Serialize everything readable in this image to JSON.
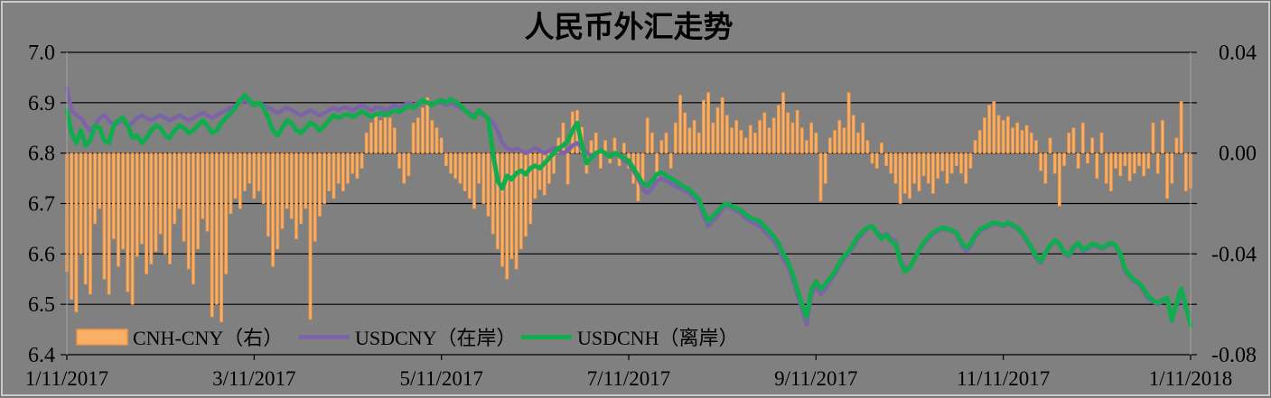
{
  "chart_data": {
    "type": "combo",
    "title": "人民币外汇走势",
    "background": "#808080",
    "grid": "horizontal",
    "legend_position": "bottom-left",
    "x": {
      "ticklabels": [
        "1/11/2017",
        "3/11/2017",
        "5/11/2017",
        "7/11/2017",
        "9/11/2017",
        "11/11/2017",
        "1/11/2018"
      ],
      "n_points": 241
    },
    "y_left": {
      "min": 6.4,
      "max": 7.0,
      "tick_step": 0.1,
      "ticklabels": [
        "7.0",
        "6.9",
        "6.8",
        "6.7",
        "6.6",
        "6.5",
        "6.4"
      ]
    },
    "y_right": {
      "min": -0.08,
      "max": 0.04,
      "tick_step": 0.04,
      "ticklabels": [
        "0.04",
        "0.00",
        "-0.04",
        "-0.08"
      ]
    },
    "series": [
      {
        "name": "CNH-CNY（右）",
        "type": "bar",
        "axis": "right",
        "fill": "#FAAF66",
        "stroke": "#ED9444",
        "values": [
          -0.047,
          -0.058,
          -0.063,
          -0.04,
          -0.052,
          -0.056,
          -0.028,
          -0.022,
          -0.05,
          -0.056,
          -0.034,
          -0.045,
          -0.038,
          -0.055,
          -0.06,
          -0.041,
          -0.036,
          -0.048,
          -0.044,
          -0.039,
          -0.032,
          -0.04,
          -0.044,
          -0.028,
          -0.022,
          -0.035,
          -0.046,
          -0.052,
          -0.038,
          -0.026,
          -0.031,
          -0.065,
          -0.06,
          -0.067,
          -0.048,
          -0.024,
          -0.018,
          -0.022,
          -0.015,
          -0.012,
          -0.018,
          -0.015,
          -0.02,
          -0.033,
          -0.045,
          -0.038,
          -0.03,
          -0.022,
          -0.026,
          -0.034,
          -0.028,
          -0.022,
          -0.066,
          -0.035,
          -0.025,
          -0.02,
          -0.015,
          -0.018,
          -0.012,
          -0.015,
          -0.012,
          -0.008,
          -0.01,
          -0.006,
          0.008,
          0.012,
          0.015,
          0.013,
          0.016,
          0.014,
          0.01,
          -0.006,
          -0.012,
          -0.009,
          0.012,
          0.014,
          0.018,
          0.022,
          0.013,
          0.01,
          0.006,
          -0.005,
          -0.008,
          -0.01,
          -0.012,
          -0.015,
          -0.018,
          -0.022,
          -0.012,
          -0.02,
          -0.025,
          -0.032,
          -0.038,
          -0.045,
          -0.05,
          -0.042,
          -0.046,
          -0.038,
          -0.033,
          -0.028,
          -0.018,
          -0.0145,
          -0.0166,
          -0.012,
          -0.008,
          0.006,
          0.012,
          -0.0123,
          0.0164,
          0.017,
          0.0103,
          -0.008,
          0.005,
          0.008,
          -0.006,
          0.005,
          -0.004,
          0.006,
          -0.005,
          0.004,
          -0.006,
          -0.012,
          -0.019,
          -0.012,
          0.0139,
          0.008,
          -0.01,
          0.005,
          0.008,
          -0.006,
          0.012,
          0.023,
          0.016,
          0.01,
          0.013,
          0.008,
          0.021,
          0.024,
          0.012,
          0.018,
          0.022,
          0.015,
          0.01,
          0.013,
          0.009,
          0.006,
          0.011,
          0.008,
          0.013,
          0.016,
          0.01,
          0.014,
          0.019,
          0.024,
          0.016,
          0.012,
          0.017,
          0.01,
          0.005,
          0.012,
          0.008,
          -0.019,
          -0.012,
          0.006,
          0.009,
          0.013,
          0.01,
          0.024,
          0.015,
          0.008,
          0.012,
          0.005,
          -0.004,
          -0.006,
          0.004,
          -0.005,
          -0.008,
          -0.012,
          -0.02,
          -0.016,
          -0.018,
          -0.012,
          -0.015,
          -0.009,
          -0.012,
          -0.016,
          -0.01,
          -0.007,
          -0.012,
          -0.008,
          -0.005,
          -0.008,
          -0.012,
          -0.006,
          0.005,
          0.009,
          0.014,
          0.019,
          0.0205,
          0.015,
          0.013,
          0.0145,
          0.01,
          0.012,
          0.009,
          0.011,
          0.008,
          0.005,
          -0.007,
          -0.012,
          0.006,
          -0.008,
          -0.021,
          -0.005,
          0.008,
          0.01,
          -0.006,
          0.012,
          -0.004,
          0.006,
          -0.01,
          0.008,
          -0.012,
          -0.015,
          -0.006,
          -0.009,
          -0.005,
          -0.011,
          -0.008,
          -0.005,
          -0.009,
          -0.006,
          0.012,
          -0.008,
          0.013,
          -0.018,
          -0.012,
          0.006,
          0.0205,
          -0.015,
          -0.014
        ]
      },
      {
        "name": "USDCNY（在岸）",
        "type": "line",
        "axis": "left",
        "color": "#7D63A8",
        "width": 4.5,
        "values": [
          6.93,
          6.885,
          6.875,
          6.87,
          6.855,
          6.845,
          6.855,
          6.87,
          6.875,
          6.865,
          6.855,
          6.86,
          6.865,
          6.855,
          6.86,
          6.87,
          6.875,
          6.87,
          6.865,
          6.87,
          6.875,
          6.87,
          6.865,
          6.87,
          6.875,
          6.87,
          6.865,
          6.87,
          6.875,
          6.88,
          6.875,
          6.87,
          6.875,
          6.88,
          6.885,
          6.89,
          6.895,
          6.9,
          6.905,
          6.9,
          6.895,
          6.9,
          6.895,
          6.89,
          6.885,
          6.88,
          6.885,
          6.89,
          6.885,
          6.88,
          6.875,
          6.88,
          6.885,
          6.88,
          6.875,
          6.88,
          6.885,
          6.89,
          6.885,
          6.89,
          6.89,
          6.885,
          6.89,
          6.895,
          6.89,
          6.885,
          6.89,
          6.89,
          6.885,
          6.89,
          6.895,
          6.89,
          6.895,
          6.9,
          6.895,
          6.9,
          6.905,
          6.9,
          6.895,
          6.9,
          6.9,
          6.895,
          6.9,
          6.895,
          6.89,
          6.885,
          6.88,
          6.875,
          6.88,
          6.875,
          6.87,
          6.86,
          6.845,
          6.82,
          6.81,
          6.805,
          6.81,
          6.805,
          6.8,
          6.805,
          6.81,
          6.805,
          6.8,
          6.805,
          6.81,
          6.807,
          6.8,
          6.805,
          6.815,
          6.82,
          6.81,
          6.8,
          6.795,
          6.8,
          6.805,
          6.8,
          6.795,
          6.8,
          6.795,
          6.785,
          6.78,
          6.765,
          6.75,
          6.73,
          6.72,
          6.73,
          6.745,
          6.75,
          6.745,
          6.74,
          6.735,
          6.73,
          6.725,
          6.72,
          6.71,
          6.7,
          6.675,
          6.655,
          6.665,
          6.675,
          6.69,
          6.695,
          6.69,
          6.685,
          6.68,
          6.67,
          6.665,
          6.66,
          6.655,
          6.645,
          6.635,
          6.625,
          6.61,
          6.59,
          6.575,
          6.55,
          6.52,
          6.49,
          6.46,
          6.52,
          6.535,
          6.52,
          6.53,
          6.545,
          6.56,
          6.575,
          6.59,
          6.6,
          6.615,
          6.63,
          6.64,
          6.65,
          6.655,
          6.645,
          6.635,
          6.64,
          6.63,
          6.625,
          6.59,
          6.57,
          6.575,
          6.59,
          6.605,
          6.62,
          6.63,
          6.64,
          6.645,
          6.65,
          6.648,
          6.645,
          6.64,
          6.62,
          6.605,
          6.615,
          6.635,
          6.645,
          6.65,
          6.655,
          6.66,
          6.658,
          6.655,
          6.66,
          6.655,
          6.65,
          6.64,
          6.625,
          6.61,
          6.59,
          6.582,
          6.6,
          6.615,
          6.625,
          6.618,
          6.6,
          6.595,
          6.61,
          6.62,
          6.605,
          6.61,
          6.618,
          6.615,
          6.61,
          6.615,
          6.62,
          6.615,
          6.595,
          6.565,
          6.555,
          6.545,
          6.54,
          6.525,
          6.51,
          6.505,
          6.5,
          6.505,
          6.51,
          6.48,
          6.498,
          6.518,
          6.49,
          6.477
        ]
      },
      {
        "name": "USDCNH（离岸）",
        "type": "line",
        "axis": "left",
        "color": "#10AD4F",
        "width": 5,
        "values": [
          6.885,
          6.84,
          6.82,
          6.845,
          6.815,
          6.825,
          6.855,
          6.85,
          6.825,
          6.82,
          6.855,
          6.865,
          6.87,
          6.855,
          6.83,
          6.835,
          6.82,
          6.83,
          6.845,
          6.855,
          6.85,
          6.835,
          6.83,
          6.845,
          6.855,
          6.85,
          6.84,
          6.845,
          6.855,
          6.865,
          6.855,
          6.84,
          6.845,
          6.86,
          6.87,
          6.88,
          6.89,
          6.905,
          6.915,
          6.905,
          6.895,
          6.9,
          6.89,
          6.87,
          6.845,
          6.835,
          6.85,
          6.865,
          6.86,
          6.845,
          6.84,
          6.85,
          6.86,
          6.855,
          6.845,
          6.855,
          6.865,
          6.875,
          6.87,
          6.875,
          6.877,
          6.872,
          6.877,
          6.883,
          6.878,
          6.872,
          6.877,
          6.88,
          6.875,
          6.88,
          6.885,
          6.882,
          6.888,
          6.893,
          6.89,
          6.897,
          6.905,
          6.9,
          6.895,
          6.902,
          6.905,
          6.9,
          6.907,
          6.902,
          6.895,
          6.885,
          6.877,
          6.87,
          6.885,
          6.877,
          6.868,
          6.8,
          6.745,
          6.73,
          6.755,
          6.748,
          6.76,
          6.765,
          6.758,
          6.77,
          6.775,
          6.77,
          6.78,
          6.79,
          6.8,
          6.81,
          6.815,
          6.825,
          6.845,
          6.86,
          6.815,
          6.78,
          6.79,
          6.8,
          6.805,
          6.8,
          6.793,
          6.8,
          6.796,
          6.79,
          6.785,
          6.77,
          6.755,
          6.74,
          6.735,
          6.745,
          6.758,
          6.762,
          6.755,
          6.75,
          6.745,
          6.738,
          6.732,
          6.728,
          6.718,
          6.708,
          6.685,
          6.665,
          6.675,
          6.685,
          6.695,
          6.7,
          6.695,
          6.69,
          6.687,
          6.677,
          6.672,
          6.668,
          6.665,
          6.655,
          6.645,
          6.635,
          6.62,
          6.6,
          6.585,
          6.56,
          6.53,
          6.5,
          6.475,
          6.53,
          6.545,
          6.53,
          6.54,
          6.552,
          6.565,
          6.582,
          6.596,
          6.605,
          6.62,
          6.635,
          6.645,
          6.652,
          6.655,
          6.642,
          6.63,
          6.638,
          6.625,
          6.62,
          6.585,
          6.565,
          6.572,
          6.59,
          6.608,
          6.623,
          6.633,
          6.643,
          6.648,
          6.652,
          6.65,
          6.647,
          6.642,
          6.625,
          6.612,
          6.62,
          6.638,
          6.648,
          6.653,
          6.658,
          6.662,
          6.66,
          6.657,
          6.662,
          6.657,
          6.652,
          6.642,
          6.628,
          6.613,
          6.595,
          6.585,
          6.602,
          6.617,
          6.627,
          6.62,
          6.603,
          6.598,
          6.613,
          6.622,
          6.608,
          6.613,
          6.62,
          6.617,
          6.612,
          6.617,
          6.622,
          6.617,
          6.6,
          6.57,
          6.558,
          6.548,
          6.543,
          6.53,
          6.515,
          6.508,
          6.503,
          6.508,
          6.513,
          6.468,
          6.503,
          6.531,
          6.495,
          6.458
        ]
      }
    ]
  }
}
